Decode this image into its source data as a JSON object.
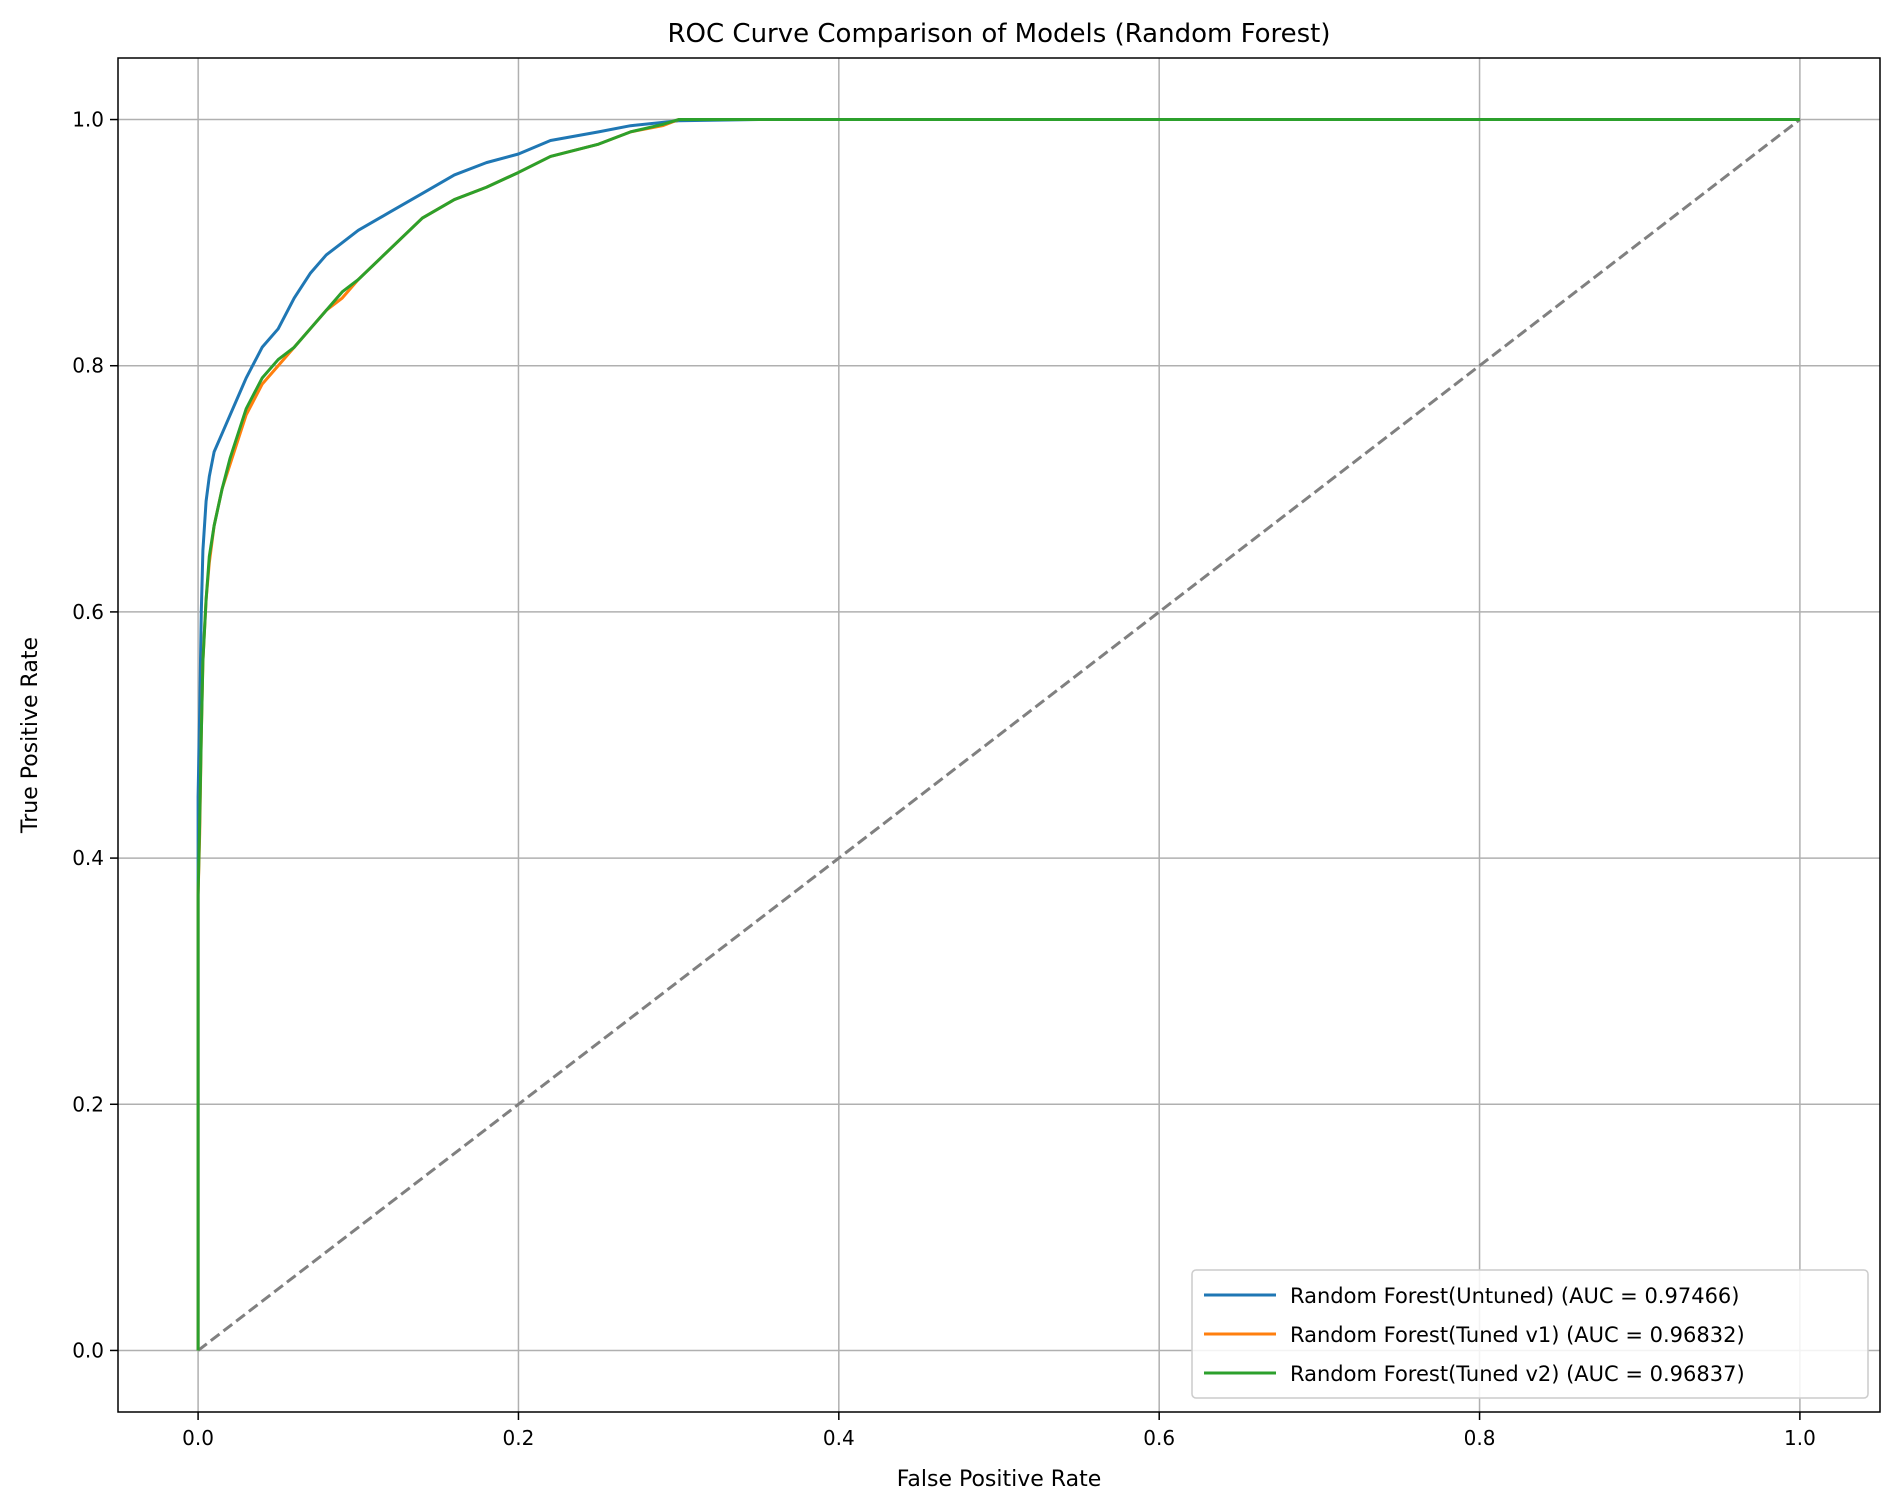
{
  "chart_data": {
    "type": "line",
    "title": "ROC Curve Comparison of Models (Random Forest)",
    "xlabel": "False Positive Rate",
    "ylabel": "True Positive Rate",
    "xlim": [
      -0.05,
      1.05
    ],
    "ylim": [
      -0.05,
      1.05
    ],
    "grid": true,
    "legend_position": "lower-right",
    "x_ticks": [
      0.0,
      0.2,
      0.4,
      0.6,
      0.8,
      1.0
    ],
    "x_tick_labels": [
      "0.0",
      "0.2",
      "0.4",
      "0.6",
      "0.8",
      "1.0"
    ],
    "y_ticks": [
      0.0,
      0.2,
      0.4,
      0.6,
      0.8,
      1.0
    ],
    "y_tick_labels": [
      "0.0",
      "0.2",
      "0.4",
      "0.6",
      "0.8",
      "1.0"
    ],
    "diagonal": {
      "x": [
        0,
        1
      ],
      "y": [
        0,
        1
      ],
      "color": "#808080",
      "style": "dashed"
    },
    "series": [
      {
        "name": "Random Forest(Untuned) (AUC = 0.97466)",
        "color": "#1f77b4",
        "x": [
          0.0,
          0.0,
          0.001,
          0.002,
          0.003,
          0.005,
          0.007,
          0.01,
          0.015,
          0.02,
          0.025,
          0.03,
          0.04,
          0.05,
          0.06,
          0.07,
          0.08,
          0.09,
          0.1,
          0.12,
          0.14,
          0.16,
          0.18,
          0.2,
          0.22,
          0.25,
          0.27,
          0.3,
          0.35,
          1.0
        ],
        "y": [
          0.0,
          0.45,
          0.52,
          0.6,
          0.65,
          0.69,
          0.71,
          0.73,
          0.745,
          0.76,
          0.775,
          0.79,
          0.815,
          0.83,
          0.855,
          0.875,
          0.89,
          0.9,
          0.91,
          0.925,
          0.94,
          0.955,
          0.965,
          0.972,
          0.983,
          0.99,
          0.995,
          0.999,
          1.0,
          1.0
        ]
      },
      {
        "name": "Random Forest(Tuned v1) (AUC = 0.96832)",
        "color": "#ff7f0e",
        "x": [
          0.0,
          0.0,
          0.001,
          0.002,
          0.003,
          0.005,
          0.007,
          0.01,
          0.015,
          0.02,
          0.03,
          0.04,
          0.05,
          0.06,
          0.07,
          0.08,
          0.09,
          0.1,
          0.12,
          0.14,
          0.16,
          0.18,
          0.2,
          0.22,
          0.25,
          0.27,
          0.29,
          0.3,
          1.0
        ],
        "y": [
          0.0,
          0.37,
          0.42,
          0.5,
          0.56,
          0.61,
          0.64,
          0.67,
          0.7,
          0.72,
          0.76,
          0.785,
          0.8,
          0.815,
          0.83,
          0.845,
          0.855,
          0.87,
          0.895,
          0.92,
          0.935,
          0.945,
          0.957,
          0.97,
          0.98,
          0.99,
          0.995,
          1.0,
          1.0
        ]
      },
      {
        "name": "Random Forest(Tuned v2) (AUC = 0.96837)",
        "color": "#2ca02c",
        "x": [
          0.0,
          0.0,
          0.001,
          0.002,
          0.003,
          0.005,
          0.007,
          0.01,
          0.015,
          0.02,
          0.03,
          0.04,
          0.05,
          0.06,
          0.07,
          0.08,
          0.09,
          0.1,
          0.12,
          0.14,
          0.16,
          0.18,
          0.2,
          0.22,
          0.25,
          0.27,
          0.29,
          0.3,
          1.0
        ],
        "y": [
          0.0,
          0.37,
          0.43,
          0.5,
          0.56,
          0.61,
          0.645,
          0.67,
          0.7,
          0.725,
          0.765,
          0.79,
          0.805,
          0.815,
          0.83,
          0.845,
          0.86,
          0.87,
          0.895,
          0.92,
          0.935,
          0.945,
          0.957,
          0.97,
          0.98,
          0.99,
          0.996,
          1.0,
          1.0
        ]
      }
    ]
  }
}
